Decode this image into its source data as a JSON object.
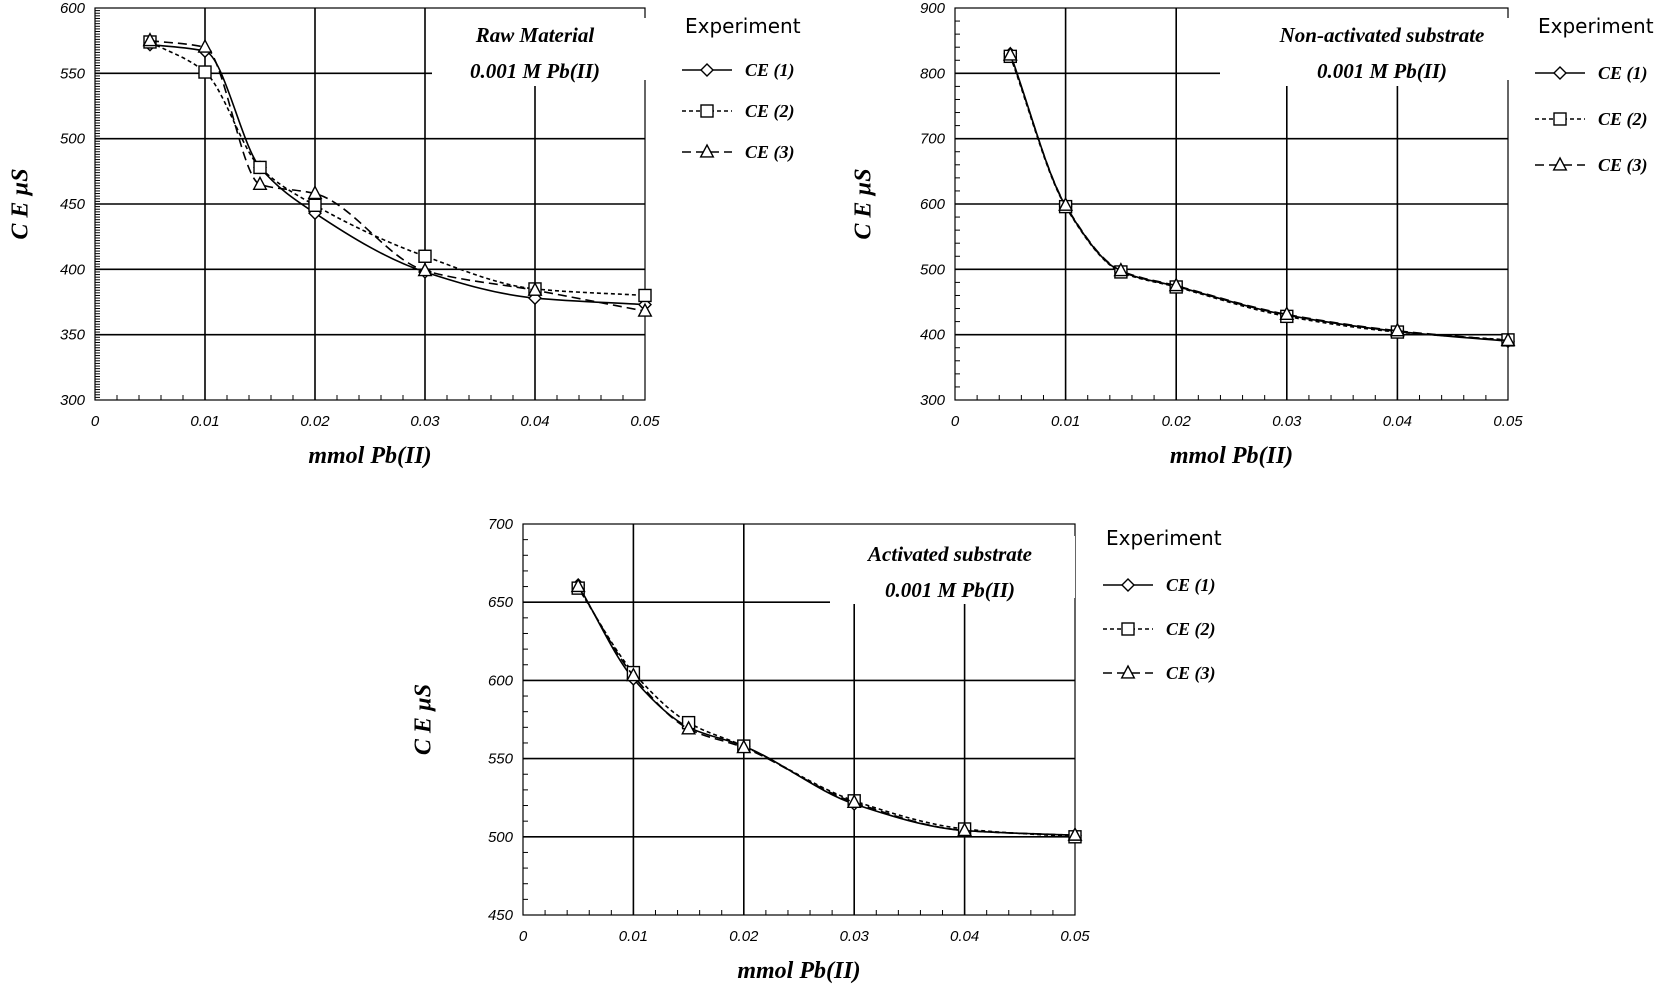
{
  "chart_data": [
    {
      "type": "line",
      "title": "Raw Material",
      "subtitle": "0.001 M  Pb(II)",
      "xlabel": "mmol Pb(II)",
      "ylabel": "C E  µS",
      "xlim": [
        0,
        0.05
      ],
      "ylim": [
        300,
        600
      ],
      "x_ticks": [
        "0",
        "0.01",
        "0.02",
        "0.03",
        "0.04",
        "0.05"
      ],
      "y_ticks": [
        "300",
        "350",
        "400",
        "450",
        "500",
        "550",
        "600"
      ],
      "grid": true,
      "legend_title": "Experiment",
      "legend_position": "right",
      "x": [
        0.005,
        0.01,
        0.015,
        0.02,
        0.03,
        0.04,
        0.05
      ],
      "series": [
        {
          "name": "CE (1)",
          "marker": "diamond",
          "dash": "solid",
          "values": [
            572,
            567,
            478,
            443,
            398,
            378,
            373
          ]
        },
        {
          "name": "CE (2)",
          "marker": "square",
          "dash": "short",
          "values": [
            574,
            551,
            478,
            449,
            410,
            385,
            380
          ]
        },
        {
          "name": "CE (3)",
          "marker": "triangle",
          "dash": "long",
          "values": [
            575,
            570,
            465,
            458,
            399,
            384,
            368
          ]
        }
      ]
    },
    {
      "type": "line",
      "title": "Non-activated substrate",
      "subtitle": "0.001 M Pb(II)",
      "xlabel": "mmol Pb(II)",
      "ylabel": "C E  µS",
      "xlim": [
        0,
        0.05
      ],
      "ylim": [
        300,
        900
      ],
      "x_ticks": [
        "0",
        "0.01",
        "0.02",
        "0.03",
        "0.04",
        "0.05"
      ],
      "y_ticks": [
        "300",
        "400",
        "500",
        "600",
        "700",
        "800",
        "900"
      ],
      "grid": true,
      "legend_title": "Experiment",
      "legend_position": "right",
      "x": [
        0.005,
        0.01,
        0.015,
        0.02,
        0.03,
        0.04,
        0.05
      ],
      "series": [
        {
          "name": "CE (1)",
          "marker": "diamond",
          "dash": "solid",
          "values": [
            830,
            597,
            497,
            474,
            430,
            405,
            390
          ]
        },
        {
          "name": "CE (2)",
          "marker": "square",
          "dash": "short",
          "values": [
            826,
            596,
            496,
            473,
            428,
            404,
            392
          ]
        },
        {
          "name": "CE (3)",
          "marker": "triangle",
          "dash": "long",
          "values": [
            828,
            598,
            498,
            475,
            431,
            406,
            391
          ]
        }
      ]
    },
    {
      "type": "line",
      "title": "Activated substrate",
      "subtitle": "0.001 M Pb(II)",
      "xlabel": "mmol Pb(II)",
      "ylabel": "C E  µS",
      "xlim": [
        0,
        0.05
      ],
      "ylim": [
        450,
        700
      ],
      "x_ticks": [
        "0",
        "0.01",
        "0.02",
        "0.03",
        "0.04",
        "0.05"
      ],
      "y_ticks": [
        "450",
        "500",
        "550",
        "600",
        "650",
        "700"
      ],
      "grid": true,
      "legend_title": "Experiment",
      "legend_position": "right",
      "x": [
        0.005,
        0.01,
        0.015,
        0.02,
        0.03,
        0.04,
        0.05
      ],
      "series": [
        {
          "name": "CE (1)",
          "marker": "diamond",
          "dash": "solid",
          "values": [
            661,
            601,
            570,
            558,
            521,
            504,
            501
          ]
        },
        {
          "name": "CE (2)",
          "marker": "square",
          "dash": "short",
          "values": [
            659,
            605,
            573,
            558,
            523,
            505,
            500
          ]
        },
        {
          "name": "CE (3)",
          "marker": "triangle",
          "dash": "long",
          "values": [
            660,
            603,
            569,
            557,
            522,
            504,
            501
          ]
        }
      ]
    }
  ]
}
